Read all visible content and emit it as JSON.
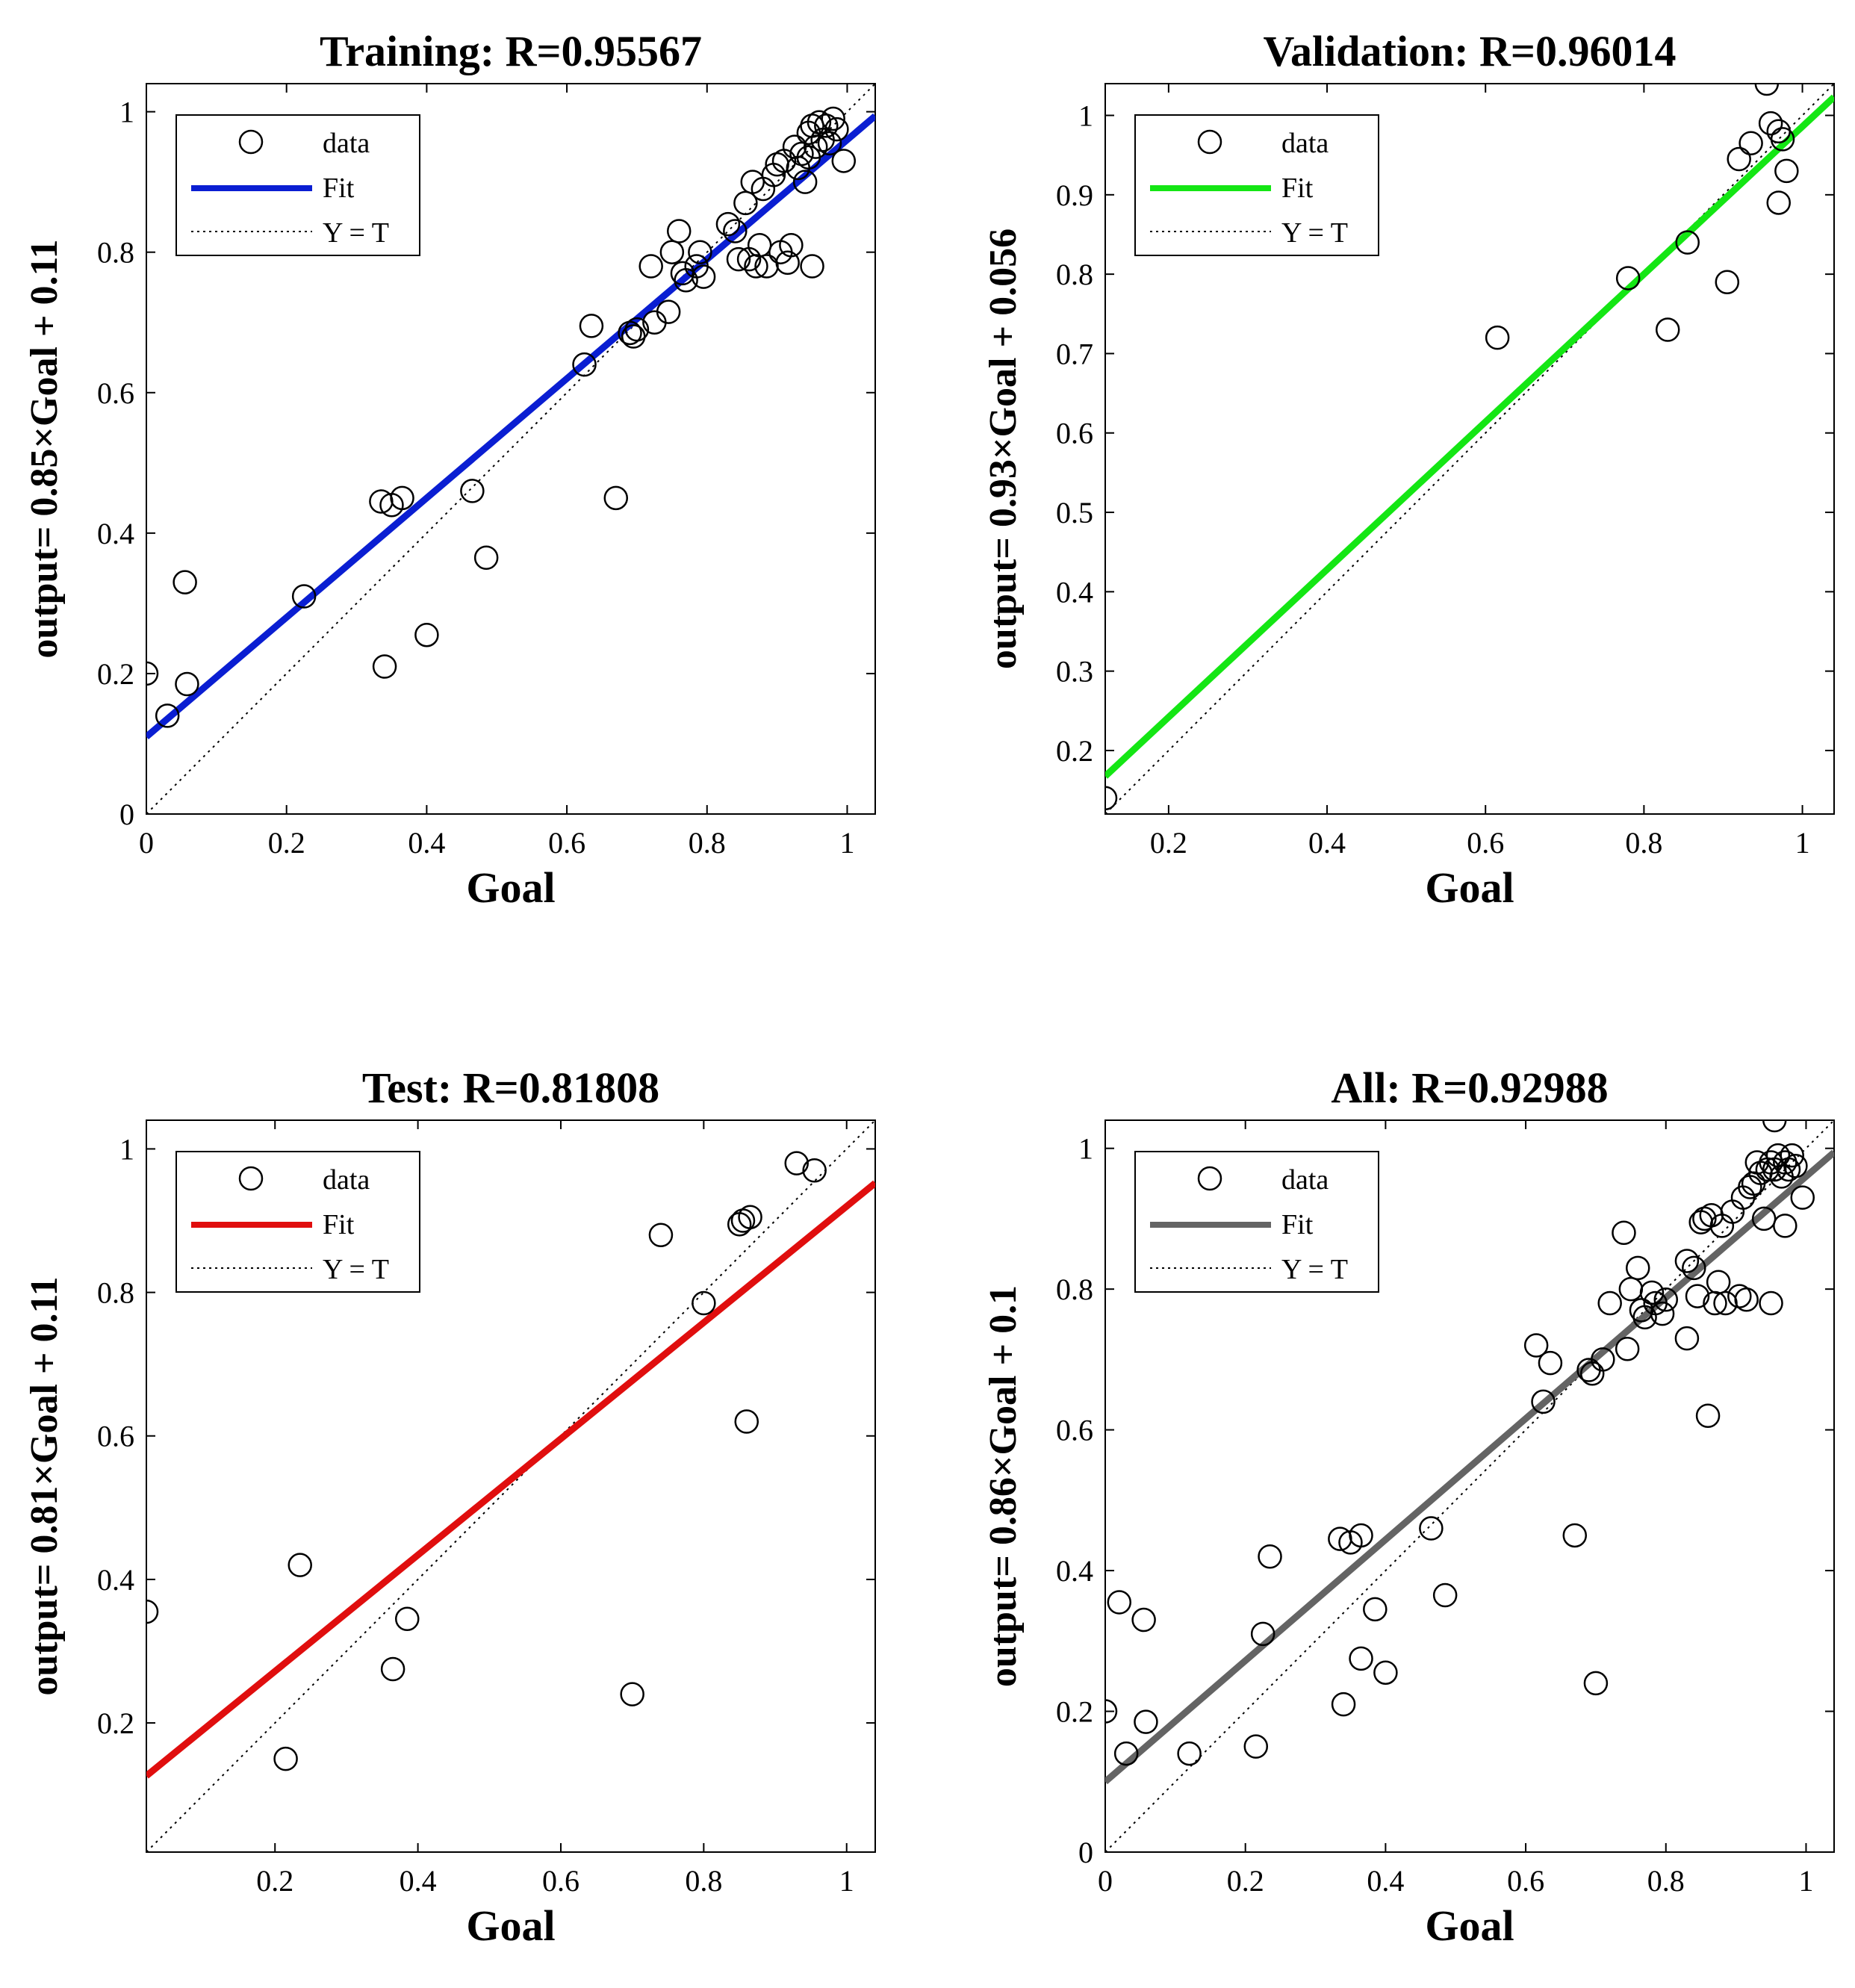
{
  "chart_data": [
    {
      "type": "scatter",
      "title": "Training: R=0.95567",
      "xlabel": "Goal",
      "ylabel": "output= 0.85×Goal + 0.11",
      "xlim": [
        0,
        1.04
      ],
      "ylim": [
        0,
        1.04
      ],
      "xticks": [
        0,
        0.2,
        0.4,
        0.6,
        0.8,
        1
      ],
      "xtick_labels": [
        "0",
        "0.2",
        "0.4",
        "0.6",
        "0.8",
        "1"
      ],
      "yticks": [
        0,
        0.2,
        0.4,
        0.6,
        0.8,
        1
      ],
      "ytick_labels": [
        "0",
        "0.2",
        "0.4",
        "0.6",
        "0.8",
        "1"
      ],
      "fit": {
        "slope": 0.85,
        "intercept": 0.11,
        "color": "#0a1ed2"
      },
      "legend": [
        "data",
        "Fit",
        "Y = T"
      ],
      "points": [
        [
          0.0,
          0.2
        ],
        [
          0.03,
          0.14
        ],
        [
          0.055,
          0.33
        ],
        [
          0.058,
          0.185
        ],
        [
          0.225,
          0.31
        ],
        [
          0.335,
          0.445
        ],
        [
          0.34,
          0.21
        ],
        [
          0.35,
          0.44
        ],
        [
          0.365,
          0.45
        ],
        [
          0.4,
          0.255
        ],
        [
          0.465,
          0.46
        ],
        [
          0.485,
          0.365
        ],
        [
          0.625,
          0.64
        ],
        [
          0.635,
          0.695
        ],
        [
          0.67,
          0.45
        ],
        [
          0.69,
          0.685
        ],
        [
          0.695,
          0.68
        ],
        [
          0.7,
          0.69
        ],
        [
          0.72,
          0.78
        ],
        [
          0.725,
          0.7
        ],
        [
          0.745,
          0.715
        ],
        [
          0.75,
          0.8
        ],
        [
          0.76,
          0.83
        ],
        [
          0.765,
          0.77
        ],
        [
          0.77,
          0.76
        ],
        [
          0.785,
          0.78
        ],
        [
          0.79,
          0.8
        ],
        [
          0.795,
          0.765
        ],
        [
          0.83,
          0.84
        ],
        [
          0.84,
          0.83
        ],
        [
          0.845,
          0.79
        ],
        [
          0.855,
          0.87
        ],
        [
          0.86,
          0.79
        ],
        [
          0.865,
          0.9
        ],
        [
          0.87,
          0.78
        ],
        [
          0.875,
          0.81
        ],
        [
          0.88,
          0.89
        ],
        [
          0.885,
          0.78
        ],
        [
          0.895,
          0.91
        ],
        [
          0.905,
          0.8
        ],
        [
          0.91,
          0.93
        ],
        [
          0.915,
          0.785
        ],
        [
          0.92,
          0.81
        ],
        [
          0.925,
          0.95
        ],
        [
          0.93,
          0.92
        ],
        [
          0.935,
          0.94
        ],
        [
          0.94,
          0.9
        ],
        [
          0.945,
          0.97
        ],
        [
          0.95,
          0.98
        ],
        [
          0.95,
          0.78
        ],
        [
          0.955,
          0.95
        ],
        [
          0.96,
          0.985
        ],
        [
          0.965,
          0.96
        ],
        [
          0.97,
          0.98
        ],
        [
          0.975,
          0.955
        ],
        [
          0.98,
          0.99
        ],
        [
          0.985,
          0.975
        ],
        [
          0.995,
          0.93
        ],
        [
          0.945,
          0.935
        ],
        [
          0.9,
          0.925
        ]
      ]
    },
    {
      "type": "scatter",
      "title": "Validation: R=0.96014",
      "xlabel": "Goal",
      "ylabel": "output= 0.93×Goal + 0.056",
      "xlim": [
        0.12,
        1.04
      ],
      "ylim": [
        0.12,
        1.04
      ],
      "xticks": [
        0.2,
        0.4,
        0.6,
        0.8,
        1
      ],
      "xtick_labels": [
        "0.2",
        "0.4",
        "0.6",
        "0.8",
        "1"
      ],
      "yticks": [
        0.2,
        0.3,
        0.4,
        0.5,
        0.6,
        0.7,
        0.8,
        0.9,
        1
      ],
      "ytick_labels": [
        "0.2",
        "0.3",
        "0.4",
        "0.5",
        "0.6",
        "0.7",
        "0.8",
        "0.9",
        "1"
      ],
      "fit": {
        "slope": 0.93,
        "intercept": 0.056,
        "color": "#14e614"
      },
      "legend": [
        "data",
        "Fit",
        "Y = T"
      ],
      "points": [
        [
          0.12,
          0.14
        ],
        [
          0.615,
          0.72
        ],
        [
          0.78,
          0.795
        ],
        [
          0.83,
          0.73
        ],
        [
          0.855,
          0.84
        ],
        [
          0.905,
          0.79
        ],
        [
          0.92,
          0.945
        ],
        [
          0.935,
          0.965
        ],
        [
          0.955,
          1.04
        ],
        [
          0.96,
          0.99
        ],
        [
          0.97,
          0.98
        ],
        [
          0.97,
          0.89
        ],
        [
          0.975,
          0.97
        ],
        [
          0.98,
          0.93
        ]
      ]
    },
    {
      "type": "scatter",
      "title": "Test: R=0.81808",
      "xlabel": "Goal",
      "ylabel": "output= 0.81×Goal + 0.11",
      "xlim": [
        0.02,
        1.04
      ],
      "ylim": [
        0.02,
        1.04
      ],
      "xticks": [
        0.2,
        0.4,
        0.6,
        0.8,
        1
      ],
      "xtick_labels": [
        "0.2",
        "0.4",
        "0.6",
        "0.8",
        "1"
      ],
      "yticks": [
        0.2,
        0.4,
        0.6,
        0.8,
        1
      ],
      "ytick_labels": [
        "0.2",
        "0.4",
        "0.6",
        "0.8",
        "1"
      ],
      "fit": {
        "slope": 0.81,
        "intercept": 0.11,
        "color": "#e00e0e"
      },
      "legend": [
        "data",
        "Fit",
        "Y = T"
      ],
      "points": [
        [
          0.02,
          0.355
        ],
        [
          0.215,
          0.15
        ],
        [
          0.235,
          0.42
        ],
        [
          0.365,
          0.275
        ],
        [
          0.385,
          0.345
        ],
        [
          0.7,
          0.24
        ],
        [
          0.74,
          0.88
        ],
        [
          0.8,
          0.785
        ],
        [
          0.85,
          0.895
        ],
        [
          0.855,
          0.9
        ],
        [
          0.86,
          0.62
        ],
        [
          0.865,
          0.905
        ],
        [
          0.93,
          0.98
        ],
        [
          0.955,
          0.97
        ]
      ]
    },
    {
      "type": "scatter",
      "title": "All: R=0.92988",
      "xlabel": "Goal",
      "ylabel": "output= 0.86×Goal + 0.1",
      "xlim": [
        0,
        1.04
      ],
      "ylim": [
        0,
        1.04
      ],
      "xticks": [
        0,
        0.2,
        0.4,
        0.6,
        0.8,
        1
      ],
      "xtick_labels": [
        "0",
        "0.2",
        "0.4",
        "0.6",
        "0.8",
        "1"
      ],
      "yticks": [
        0,
        0.2,
        0.4,
        0.6,
        0.8,
        1
      ],
      "ytick_labels": [
        "0",
        "0.2",
        "0.4",
        "0.6",
        "0.8",
        "1"
      ],
      "fit": {
        "slope": 0.86,
        "intercept": 0.1,
        "color": "#646464"
      },
      "legend": [
        "data",
        "Fit",
        "Y = T"
      ],
      "points": [
        [
          0.0,
          0.2
        ],
        [
          0.02,
          0.355
        ],
        [
          0.03,
          0.14
        ],
        [
          0.055,
          0.33
        ],
        [
          0.058,
          0.185
        ],
        [
          0.12,
          0.14
        ],
        [
          0.215,
          0.15
        ],
        [
          0.225,
          0.31
        ],
        [
          0.235,
          0.42
        ],
        [
          0.335,
          0.445
        ],
        [
          0.34,
          0.21
        ],
        [
          0.35,
          0.44
        ],
        [
          0.365,
          0.275
        ],
        [
          0.365,
          0.45
        ],
        [
          0.385,
          0.345
        ],
        [
          0.4,
          0.255
        ],
        [
          0.465,
          0.46
        ],
        [
          0.485,
          0.365
        ],
        [
          0.615,
          0.72
        ],
        [
          0.625,
          0.64
        ],
        [
          0.635,
          0.695
        ],
        [
          0.67,
          0.45
        ],
        [
          0.69,
          0.685
        ],
        [
          0.695,
          0.68
        ],
        [
          0.7,
          0.24
        ],
        [
          0.71,
          0.7
        ],
        [
          0.72,
          0.78
        ],
        [
          0.74,
          0.88
        ],
        [
          0.745,
          0.715
        ],
        [
          0.75,
          0.8
        ],
        [
          0.76,
          0.83
        ],
        [
          0.765,
          0.77
        ],
        [
          0.77,
          0.76
        ],
        [
          0.78,
          0.795
        ],
        [
          0.785,
          0.78
        ],
        [
          0.795,
          0.765
        ],
        [
          0.8,
          0.785
        ],
        [
          0.83,
          0.73
        ],
        [
          0.83,
          0.84
        ],
        [
          0.84,
          0.83
        ],
        [
          0.845,
          0.79
        ],
        [
          0.85,
          0.895
        ],
        [
          0.855,
          0.9
        ],
        [
          0.86,
          0.62
        ],
        [
          0.865,
          0.905
        ],
        [
          0.87,
          0.78
        ],
        [
          0.875,
          0.81
        ],
        [
          0.88,
          0.89
        ],
        [
          0.885,
          0.78
        ],
        [
          0.895,
          0.91
        ],
        [
          0.905,
          0.79
        ],
        [
          0.91,
          0.93
        ],
        [
          0.915,
          0.785
        ],
        [
          0.92,
          0.945
        ],
        [
          0.925,
          0.95
        ],
        [
          0.93,
          0.98
        ],
        [
          0.935,
          0.965
        ],
        [
          0.94,
          0.9
        ],
        [
          0.945,
          0.97
        ],
        [
          0.95,
          0.98
        ],
        [
          0.95,
          0.78
        ],
        [
          0.955,
          1.04
        ],
        [
          0.955,
          0.97
        ],
        [
          0.96,
          0.99
        ],
        [
          0.965,
          0.96
        ],
        [
          0.97,
          0.98
        ],
        [
          0.97,
          0.89
        ],
        [
          0.975,
          0.97
        ],
        [
          0.98,
          0.99
        ],
        [
          0.985,
          0.975
        ],
        [
          0.995,
          0.93
        ]
      ]
    }
  ]
}
